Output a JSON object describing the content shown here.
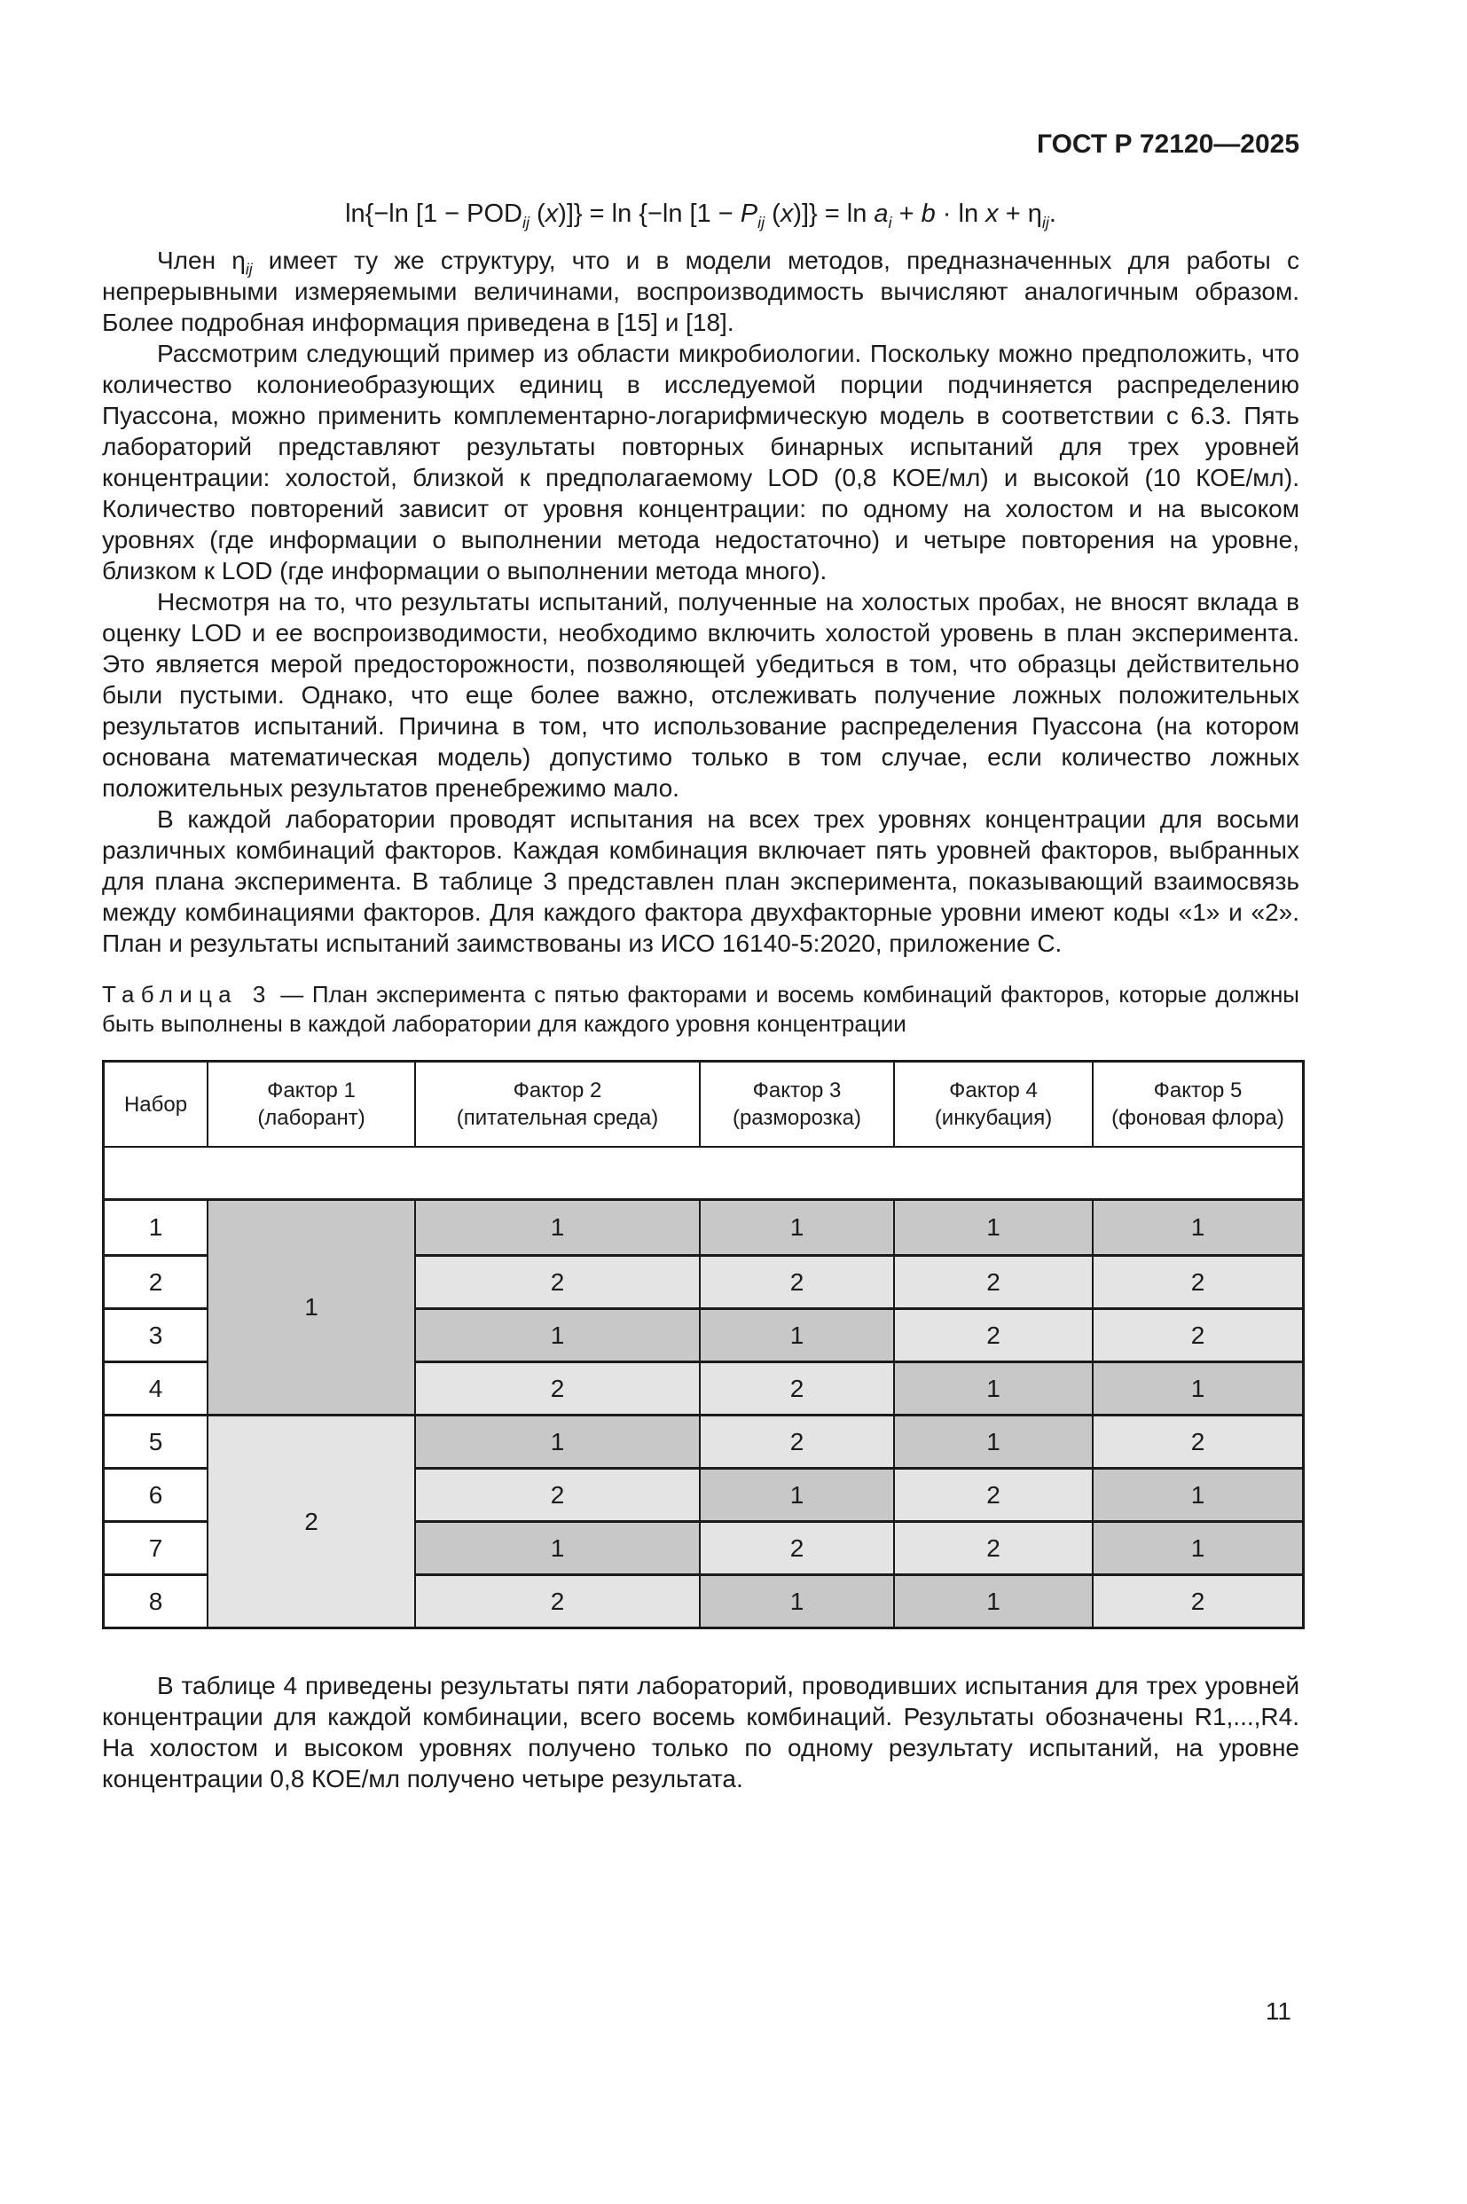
{
  "page": {
    "header": "ГОСТ Р 72120—2025",
    "page_number": "11"
  },
  "colors": {
    "cell_dark": "#c8c8c8",
    "cell_light": "#e4e4e4",
    "line": "#1a1a1a"
  },
  "formula": {
    "seg": [
      "ln{−ln [1 − POD",
      "ij",
      " (",
      "x",
      ")]} = ln {−ln [1 − ",
      "P",
      "ij",
      " (",
      "x",
      ")]} = ln ",
      "a",
      "i",
      " + ",
      "b",
      " · ln ",
      "x",
      " + η",
      "ij",
      "."
    ]
  },
  "body": {
    "p1_pre": "Член η",
    "p1_sub": "ij",
    "p1_post": " имеет ту же структуру, что и в модели методов, предназначенных для работы с непрерывными измеряемыми величинами, воспроизводимость вычисляют аналогичным образом. Более подробная информация приведена в [15] и [18].",
    "p2": "Рассмотрим следующий пример из области микробиологии. Поскольку можно предположить, что количество колониеобразующих единиц в исследуемой порции подчиняется распределению Пуассона, можно применить комплементарно-логарифмическую модель в соответствии с 6.3. Пять лабораторий представляют результаты повторных бинарных испытаний для трех уровней концентрации: холостой, близкой к предполагаемому LOD (0,8 КОЕ/мл) и высокой (10 КОЕ/мл). Количество повторений зависит от уровня концентрации: по одному на холостом и на высоком уровнях (где информации о выполнении метода недостаточно) и четыре повторения на уровне, близком к LOD (где информации о выполнении метода много).",
    "p3": "Несмотря на то, что результаты испытаний, полученные на холостых пробах, не вносят вклада в оценку LOD и ее воспроизводимости, необходимо включить холостой уровень в план эксперимента. Это является мерой предосторожности, позволяющей убедиться в том, что образцы действительно были пустыми. Однако, что еще более важно, отслеживать получение ложных положительных результатов испытаний. Причина в том, что использование распределения Пуассона (на котором основана математическая модель) допустимо только в том случае, если количество ложных положительных результатов пренебрежимо мало.",
    "p4": "В каждой лаборатории проводят испытания на всех трех уровнях концентрации для восьми различных комбинаций факторов. Каждая комбинация включает пять уровней факторов, выбранных для плана эксперимента. В таблице 3 представлен план эксперимента, показывающий взаимосвязь между комбинациями факторов. Для каждого фактора двухфакторные уровни имеют коды «1» и «2». План и результаты испытаний заимствованы из ИСО 16140-5:2020, приложение С.",
    "p5": "В таблице 4 приведены результаты пяти лабораторий, проводивших испытания для трех уровней концентрации для каждой комбинации, всего восемь комбинаций. Результаты обозначены R1,...,R4. На холостом и высоком уровнях получено только по одному результату испытаний, на уровне концентрации 0,8 КОЕ/мл получено четыре результата."
  },
  "table3": {
    "caption_label": "Таблица 3",
    "caption_rest": " — План эксперимента с пятью факторами и восемь комбинаций факторов, которые должны быть выполнены в каждой лаборатории для каждого уровня концентрации",
    "headers": [
      {
        "line1": "Набор",
        "line2": ""
      },
      {
        "line1": "Фактор 1",
        "line2": "(лаборант)"
      },
      {
        "line1": "Фактор 2",
        "line2": "(питательная среда)"
      },
      {
        "line1": "Фактор 3",
        "line2": "(разморозка)"
      },
      {
        "line1": "Фактор 4",
        "line2": "(инкубация)"
      },
      {
        "line1": "Фактор 5",
        "line2": "(фоновая флора)"
      }
    ],
    "factor1_groups": [
      {
        "label": "1"
      },
      {
        "label": "2"
      }
    ],
    "rows": [
      {
        "set": "1",
        "f2": "1",
        "f3": "1",
        "f4": "1",
        "f5": "1"
      },
      {
        "set": "2",
        "f2": "2",
        "f3": "2",
        "f4": "2",
        "f5": "2"
      },
      {
        "set": "3",
        "f2": "1",
        "f3": "1",
        "f4": "2",
        "f5": "2"
      },
      {
        "set": "4",
        "f2": "2",
        "f3": "2",
        "f4": "1",
        "f5": "1"
      },
      {
        "set": "5",
        "f2": "1",
        "f3": "2",
        "f4": "1",
        "f5": "2"
      },
      {
        "set": "6",
        "f2": "2",
        "f3": "1",
        "f4": "2",
        "f5": "1"
      },
      {
        "set": "7",
        "f2": "1",
        "f3": "2",
        "f4": "2",
        "f5": "1"
      },
      {
        "set": "8",
        "f2": "2",
        "f3": "1",
        "f4": "1",
        "f5": "2"
      }
    ]
  }
}
